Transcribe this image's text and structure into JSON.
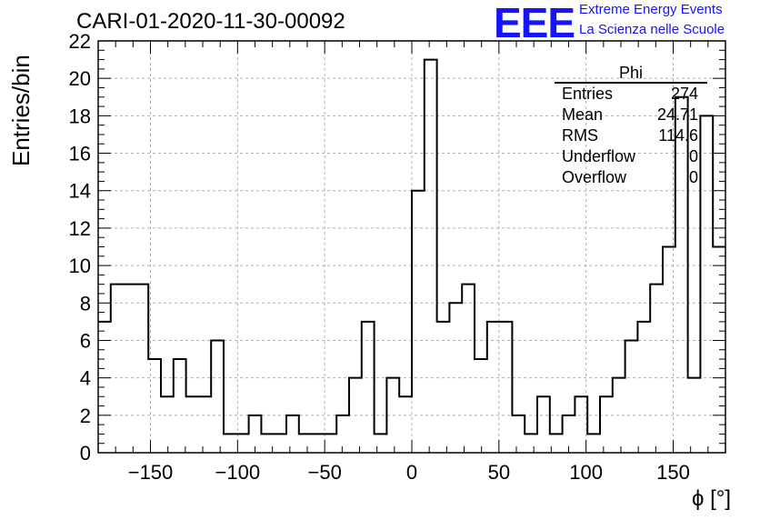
{
  "header": {
    "run_title": "CARI-01-2020-11-30-00092",
    "logo_text": "EEE",
    "logo_line1": "Extreme Energy Events",
    "logo_line2": "La Scienza nelle Scuole"
  },
  "stats_box": {
    "title": "Phi",
    "rows": [
      {
        "label": "Entries",
        "value": "274"
      },
      {
        "label": "Mean",
        "value": "24.71"
      },
      {
        "label": "RMS",
        "value": "114.6"
      },
      {
        "label": "Underflow",
        "value": "0"
      },
      {
        "label": "Overflow",
        "value": "0"
      }
    ]
  },
  "chart_data": {
    "type": "bar",
    "style": "step-histogram",
    "xlabel": "ϕ [°]",
    "ylabel": "Entries/bin",
    "xlim": [
      -180,
      180
    ],
    "ylim": [
      0,
      22
    ],
    "bin_width": 7.2,
    "grid": true,
    "x_ticks": [
      -150,
      -100,
      -50,
      0,
      50,
      100,
      150
    ],
    "y_ticks": [
      0,
      2,
      4,
      6,
      8,
      10,
      12,
      14,
      16,
      18,
      20,
      22
    ],
    "values": [
      7,
      9,
      9,
      9,
      5,
      3,
      5,
      3,
      3,
      6,
      1,
      1,
      2,
      1,
      1,
      2,
      1,
      1,
      1,
      2,
      4,
      7,
      1,
      4,
      3,
      14,
      21,
      7,
      8,
      9,
      5,
      7,
      7,
      2,
      1,
      3,
      1,
      2,
      3,
      1,
      3,
      4,
      6,
      7,
      9,
      11,
      19,
      4,
      18,
      11
    ],
    "color": "#000000"
  }
}
